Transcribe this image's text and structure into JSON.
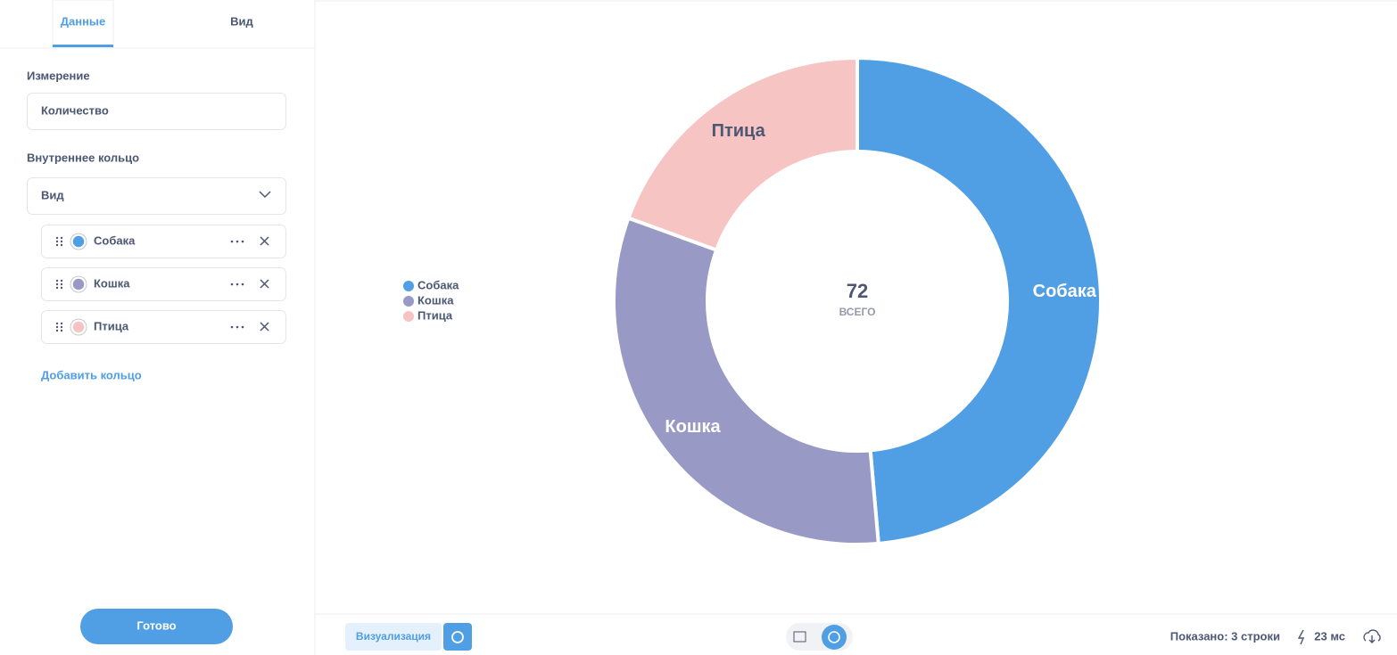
{
  "sidebar": {
    "tabs": [
      "Данные",
      "Вид"
    ],
    "measure_label": "Измерение",
    "measure_value": "Количество",
    "ring_label": "Внутреннее кольцо",
    "ring_value": "Вид",
    "add_ring": "Добавить кольцо",
    "done": "Готово"
  },
  "footer": {
    "visualization": "Визуализация",
    "rows": "Показано: 3 строки",
    "time": "23 мс"
  },
  "chart_data": {
    "type": "pie",
    "categories": [
      "Собака",
      "Кошка",
      "Птица"
    ],
    "values": [
      35,
      23,
      14
    ],
    "colors": [
      "#509ee3",
      "#989ac5",
      "#f5c4c3"
    ],
    "total": 72,
    "total_label": "ВСЕГО",
    "legend": "left"
  }
}
